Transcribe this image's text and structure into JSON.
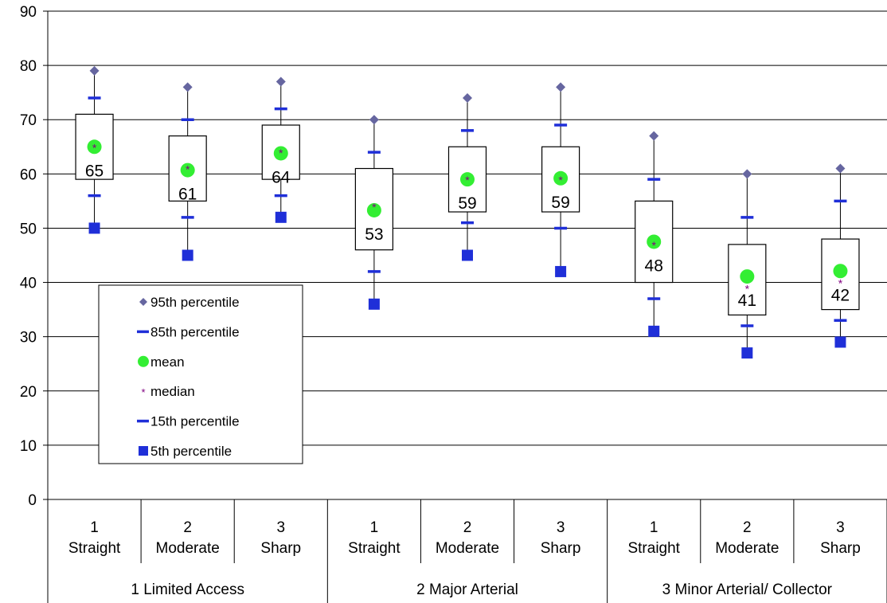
{
  "chart_data": {
    "type": "box",
    "title": "",
    "xlabel": "",
    "ylabel": "",
    "ylim": [
      0,
      90
    ],
    "yticks": [
      0,
      10,
      20,
      30,
      40,
      50,
      60,
      70,
      80,
      90
    ],
    "grid": true,
    "legend_position": "left-inside",
    "groups": [
      {
        "label": "1 Limited Access",
        "categories": [
          [
            "1",
            "Straight"
          ],
          [
            "2",
            "Moderate"
          ],
          [
            "3",
            "Sharp"
          ]
        ]
      },
      {
        "label": "2 Major Arterial",
        "categories": [
          [
            "1",
            "Straight"
          ],
          [
            "2",
            "Moderate"
          ],
          [
            "3",
            "Sharp"
          ]
        ]
      },
      {
        "label": "3 Minor Arterial/ Collector",
        "categories": [
          [
            "1",
            "Straight"
          ],
          [
            "2",
            "Moderate"
          ],
          [
            "3",
            "Sharp"
          ]
        ]
      }
    ],
    "boxes": [
      {
        "p95": 79,
        "p85": 74,
        "q3": 71,
        "q1": 59,
        "p15": 56,
        "p5": 50,
        "mean": 65,
        "median": 65,
        "label": "65"
      },
      {
        "p95": 76,
        "p85": 70,
        "q3": 67,
        "q1": 55,
        "p15": 52,
        "p5": 45,
        "mean": 60.7,
        "median": 61,
        "label": "61"
      },
      {
        "p95": 77,
        "p85": 72,
        "q3": 69,
        "q1": 59,
        "p15": 56,
        "p5": 52,
        "mean": 63.8,
        "median": 64,
        "label": "64"
      },
      {
        "p95": 70,
        "p85": 64,
        "q3": 61,
        "q1": 46,
        "p15": 42,
        "p5": 36,
        "mean": 53.3,
        "median": 54,
        "label": "53"
      },
      {
        "p95": 74,
        "p85": 68,
        "q3": 65,
        "q1": 53,
        "p15": 51,
        "p5": 45,
        "mean": 59,
        "median": 59,
        "label": "59"
      },
      {
        "p95": 76,
        "p85": 69,
        "q3": 65,
        "q1": 53,
        "p15": 50,
        "p5": 42,
        "mean": 59.2,
        "median": 59,
        "label": "59"
      },
      {
        "p95": 67,
        "p85": 59,
        "q3": 55,
        "q1": 40,
        "p15": 37,
        "p5": 31,
        "mean": 47.5,
        "median": 47,
        "label": "48"
      },
      {
        "p95": 60,
        "p85": 52,
        "q3": 47,
        "q1": 34,
        "p15": 32,
        "p5": 27,
        "mean": 41.1,
        "median": 39,
        "label": "41"
      },
      {
        "p95": 61,
        "p85": 55,
        "q3": 48,
        "q1": 35,
        "p15": 33,
        "p5": 29,
        "mean": 42.1,
        "median": 40,
        "label": "42"
      }
    ],
    "legend": [
      {
        "key": "p95",
        "label": "95th percentile"
      },
      {
        "key": "p85",
        "label": "85th percentile"
      },
      {
        "key": "mean",
        "label": "mean"
      },
      {
        "key": "median",
        "label": "median"
      },
      {
        "key": "p15",
        "label": "15th percentile"
      },
      {
        "key": "p5",
        "label": "5th percentile"
      }
    ],
    "colors": {
      "p95": "#6666a0",
      "p85p15": "#1f2fd8",
      "mean": "#33ee33",
      "median": "#800080",
      "p5": "#1f2fd8",
      "box": "#000000",
      "grid": "#000000"
    }
  }
}
